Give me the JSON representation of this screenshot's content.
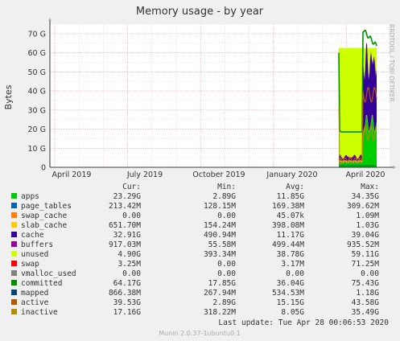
{
  "chart_data": {
    "type": "area",
    "title": "Memory usage - by year",
    "ylabel": "Bytes",
    "side_label": "RRDTOOL / TOBI OETIKER",
    "ylim": [
      0,
      75
    ],
    "yticks": [
      "0",
      "10 G",
      "20 G",
      "30 G",
      "40 G",
      "50 G",
      "60 G",
      "70 G"
    ],
    "xticks": [
      "April 2019",
      "July 2019",
      "October 2019",
      "January 2020",
      "April 2020"
    ],
    "legend_headers": {
      "cur": "Cur:",
      "min": "Min:",
      "avg": "Avg:",
      "max": "Max:"
    },
    "series": [
      {
        "name": "apps",
        "color": "#00cc00",
        "cur": "23.29G",
        "min": "2.89G",
        "avg": "11.85G",
        "max": "34.35G"
      },
      {
        "name": "page_tables",
        "color": "#0066b3",
        "cur": "213.42M",
        "min": "128.15M",
        "avg": "169.38M",
        "max": "309.62M"
      },
      {
        "name": "swap_cache",
        "color": "#ff8000",
        "cur": "0.00",
        "min": "0.00",
        "avg": "45.07k",
        "max": "1.09M"
      },
      {
        "name": "slab_cache",
        "color": "#ffcc00",
        "cur": "651.70M",
        "min": "154.24M",
        "avg": "398.08M",
        "max": "1.03G"
      },
      {
        "name": "cache",
        "color": "#330099",
        "cur": "32.91G",
        "min": "490.94M",
        "avg": "11.17G",
        "max": "39.04G"
      },
      {
        "name": "buffers",
        "color": "#990099",
        "cur": "917.03M",
        "min": "55.58M",
        "avg": "499.44M",
        "max": "935.52M"
      },
      {
        "name": "unused",
        "color": "#ccff00",
        "cur": "4.90G",
        "min": "393.34M",
        "avg": "38.78G",
        "max": "59.11G"
      },
      {
        "name": "swap",
        "color": "#ff0000",
        "cur": "3.25M",
        "min": "0.00",
        "avg": "3.17M",
        "max": "71.25M"
      },
      {
        "name": "vmalloc_used",
        "color": "#808080",
        "cur": "0.00",
        "min": "0.00",
        "avg": "0.00",
        "max": "0.00"
      },
      {
        "name": "committed",
        "color": "#008f00",
        "cur": "64.17G",
        "min": "17.85G",
        "avg": "36.04G",
        "max": "75.43G"
      },
      {
        "name": "mapped",
        "color": "#00487d",
        "cur": "866.38M",
        "min": "267.94M",
        "avg": "534.53M",
        "max": "1.18G"
      },
      {
        "name": "active",
        "color": "#b35a00",
        "cur": "39.53G",
        "min": "2.89G",
        "avg": "15.15G",
        "max": "43.58G"
      },
      {
        "name": "inactive",
        "color": "#b38f00",
        "cur": "17.16G",
        "min": "318.22M",
        "avg": "8.05G",
        "max": "35.49G"
      }
    ],
    "last_update": "Last update: Tue Apr 28 00:06:53 2020",
    "footer": "Munin 2.0.37-1ubuntu0.1"
  }
}
